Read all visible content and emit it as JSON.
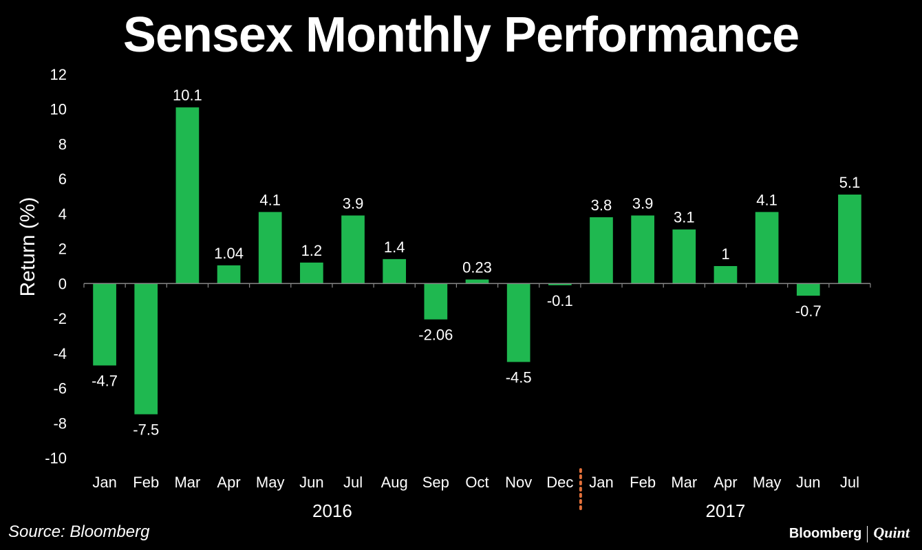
{
  "title": "Sensex Monthly Performance",
  "source": "Source: Bloomberg",
  "brand": {
    "left": "Bloomberg",
    "right": "Quint"
  },
  "colors": {
    "bar": "#1fb850",
    "background": "#000000",
    "text": "#ffffff",
    "axis": "#8a8a8a",
    "divider": "#e2703a"
  },
  "chart_data": {
    "type": "bar",
    "title": "Sensex Monthly Performance",
    "xlabel": "",
    "ylabel": "Return (%)",
    "ylim": [
      -10,
      12
    ],
    "yticks": [
      12,
      10,
      8,
      6,
      4,
      2,
      0,
      -2,
      -4,
      -6,
      -8,
      -10
    ],
    "grid": false,
    "categories": [
      "Jan",
      "Feb",
      "Mar",
      "Apr",
      "May",
      "Jun",
      "Jul",
      "Aug",
      "Sep",
      "Oct",
      "Nov",
      "Dec",
      "Jan",
      "Feb",
      "Mar",
      "Apr",
      "May",
      "Jun",
      "Jul"
    ],
    "values": [
      -4.7,
      -7.5,
      10.1,
      1.04,
      4.1,
      1.2,
      3.9,
      1.4,
      -2.06,
      0.23,
      -4.5,
      -0.1,
      3.8,
      3.9,
      3.1,
      1,
      4.1,
      -0.7,
      5.1
    ],
    "value_labels": [
      "-4.7",
      "-7.5",
      "10.1",
      "1.04",
      "4.1",
      "1.2",
      "3.9",
      "1.4",
      "-2.06",
      "0.23",
      "-4.5",
      "-0.1",
      "3.8",
      "3.9",
      "3.1",
      "1",
      "4.1",
      "-0.7",
      "5.1"
    ],
    "groups": [
      {
        "label": "2016",
        "start": 0,
        "end": 11
      },
      {
        "label": "2017",
        "start": 12,
        "end": 18
      }
    ]
  }
}
